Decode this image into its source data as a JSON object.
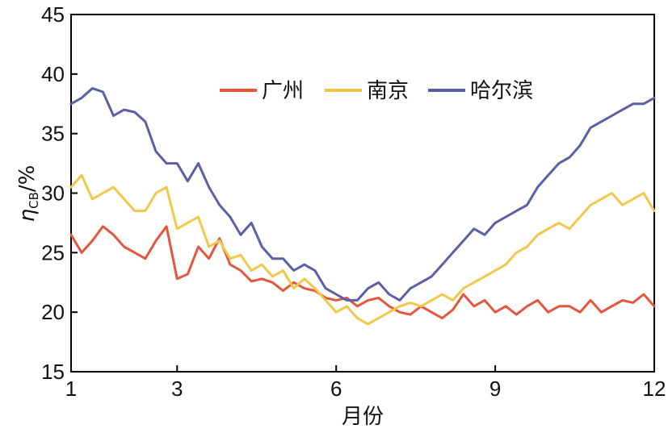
{
  "chart_data": {
    "type": "line",
    "xlabel": "月份",
    "ylabel": {
      "main": "η",
      "sub": "CB",
      "suffix": "/%"
    },
    "xlim": [
      1,
      12
    ],
    "ylim": [
      15,
      45
    ],
    "xticks": [
      1,
      3,
      6,
      9,
      12
    ],
    "xtick_labels": [
      "1",
      "3",
      "6",
      "9",
      "12"
    ],
    "yticks": [
      15,
      20,
      25,
      30,
      35,
      40,
      45
    ],
    "ytick_labels": [
      "15",
      "20",
      "25",
      "30",
      "35",
      "40",
      "45"
    ],
    "grid": false,
    "legend_position": "top-center",
    "x_unit": "month",
    "series": [
      {
        "name": "广州",
        "color": "#e4573e",
        "x": [
          1.0,
          1.2,
          1.4,
          1.6,
          1.8,
          2.0,
          2.2,
          2.4,
          2.6,
          2.8,
          3.0,
          3.2,
          3.4,
          3.6,
          3.8,
          4.0,
          4.2,
          4.4,
          4.6,
          4.8,
          5.0,
          5.2,
          5.4,
          5.6,
          5.8,
          6.0,
          6.2,
          6.4,
          6.6,
          6.8,
          7.0,
          7.2,
          7.4,
          7.6,
          7.8,
          8.0,
          8.2,
          8.4,
          8.6,
          8.8,
          9.0,
          9.2,
          9.4,
          9.6,
          9.8,
          10.0,
          10.2,
          10.4,
          10.6,
          10.8,
          11.0,
          11.2,
          11.4,
          11.6,
          11.8,
          12.0
        ],
        "values": [
          26.5,
          25.0,
          26.0,
          27.2,
          26.5,
          25.5,
          25.0,
          24.5,
          26.0,
          27.2,
          22.8,
          23.2,
          25.5,
          24.5,
          26.2,
          24.0,
          23.5,
          22.6,
          22.8,
          22.5,
          21.8,
          22.5,
          22.0,
          21.8,
          21.2,
          21.0,
          21.2,
          20.5,
          21.0,
          21.2,
          20.5,
          20.0,
          19.8,
          20.5,
          20.0,
          19.5,
          20.2,
          21.5,
          20.5,
          21.0,
          20.0,
          20.5,
          19.8,
          20.5,
          21.0,
          20.0,
          20.5,
          20.5,
          20.0,
          21.0,
          20.0,
          20.5,
          21.0,
          20.8,
          21.5,
          20.5
        ]
      },
      {
        "name": "南京",
        "color": "#f2c84b",
        "x": [
          1.0,
          1.2,
          1.4,
          1.6,
          1.8,
          2.0,
          2.2,
          2.4,
          2.6,
          2.8,
          3.0,
          3.2,
          3.4,
          3.6,
          3.8,
          4.0,
          4.2,
          4.4,
          4.6,
          4.8,
          5.0,
          5.2,
          5.4,
          5.6,
          5.8,
          6.0,
          6.2,
          6.4,
          6.6,
          6.8,
          7.0,
          7.2,
          7.4,
          7.6,
          7.8,
          8.0,
          8.2,
          8.4,
          8.6,
          8.8,
          9.0,
          9.2,
          9.4,
          9.6,
          9.8,
          10.0,
          10.2,
          10.4,
          10.6,
          10.8,
          11.0,
          11.2,
          11.4,
          11.6,
          11.8,
          12.0
        ],
        "values": [
          30.5,
          31.5,
          29.5,
          30.0,
          30.5,
          29.5,
          28.5,
          28.5,
          30.0,
          30.5,
          27.0,
          27.5,
          28.0,
          25.5,
          26.0,
          24.5,
          24.8,
          23.5,
          24.0,
          23.0,
          23.5,
          22.0,
          22.8,
          22.0,
          21.0,
          20.0,
          20.5,
          19.5,
          19.0,
          19.5,
          20.0,
          20.5,
          20.8,
          20.5,
          21.0,
          21.5,
          21.0,
          22.0,
          22.5,
          23.0,
          23.5,
          24.0,
          25.0,
          25.5,
          26.5,
          27.0,
          27.5,
          27.0,
          28.0,
          29.0,
          29.5,
          30.0,
          29.0,
          29.5,
          30.0,
          28.5
        ]
      },
      {
        "name": "哈尔滨",
        "color": "#5b5fa3",
        "x": [
          1.0,
          1.2,
          1.4,
          1.6,
          1.8,
          2.0,
          2.2,
          2.4,
          2.6,
          2.8,
          3.0,
          3.2,
          3.4,
          3.6,
          3.8,
          4.0,
          4.2,
          4.4,
          4.6,
          4.8,
          5.0,
          5.2,
          5.4,
          5.6,
          5.8,
          6.0,
          6.2,
          6.4,
          6.6,
          6.8,
          7.0,
          7.2,
          7.4,
          7.6,
          7.8,
          8.0,
          8.2,
          8.4,
          8.6,
          8.8,
          9.0,
          9.2,
          9.4,
          9.6,
          9.8,
          10.0,
          10.2,
          10.4,
          10.6,
          10.8,
          11.0,
          11.2,
          11.4,
          11.6,
          11.8,
          12.0
        ],
        "values": [
          37.5,
          38.0,
          38.8,
          38.5,
          36.5,
          37.0,
          36.8,
          36.0,
          33.5,
          32.5,
          32.5,
          31.0,
          32.5,
          30.5,
          29.0,
          28.0,
          26.5,
          27.5,
          25.5,
          24.5,
          24.5,
          23.5,
          24.0,
          23.5,
          22.0,
          21.5,
          21.0,
          21.0,
          22.0,
          22.5,
          21.5,
          21.0,
          22.0,
          22.5,
          23.0,
          24.0,
          25.0,
          26.0,
          27.0,
          26.5,
          27.5,
          28.0,
          28.5,
          29.0,
          30.5,
          31.5,
          32.5,
          33.0,
          34.0,
          35.5,
          36.0,
          36.5,
          37.0,
          37.5,
          37.5,
          38.0
        ]
      }
    ]
  }
}
